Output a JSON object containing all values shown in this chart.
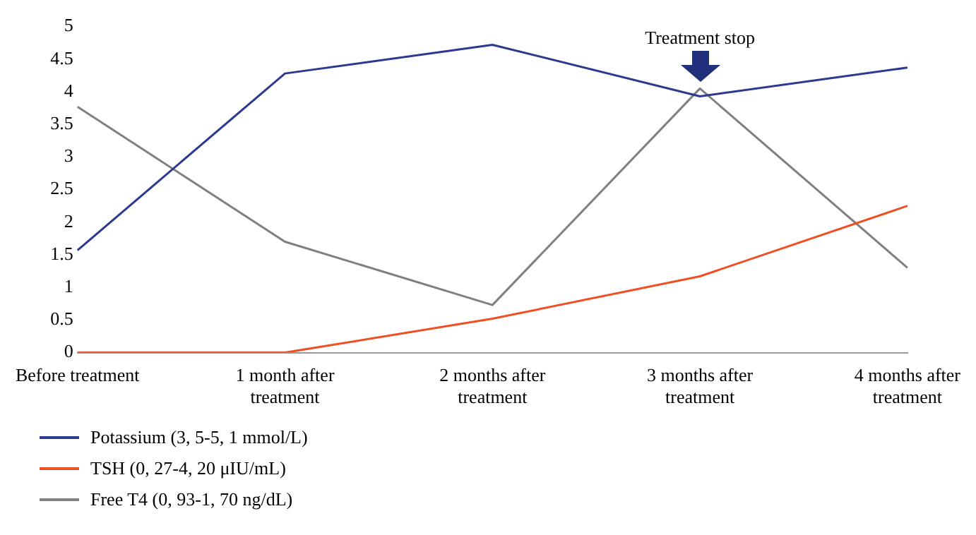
{
  "chart_data": {
    "type": "line",
    "categories": [
      "Before treatment",
      "1 month after treatment",
      "2 months after treatment",
      "3 months after treatment",
      "4 months after treatment"
    ],
    "series": [
      {
        "name": "Potassium (3, 5-5, 1 mmol/L)",
        "color": "#2b3990",
        "values": [
          1.57,
          4.28,
          4.72,
          3.93,
          4.37
        ]
      },
      {
        "name": "TSH (0, 27-4, 20 μIU/mL)",
        "color": "#f04e23",
        "values": [
          0,
          0,
          0.52,
          1.17,
          2.25
        ]
      },
      {
        "name": "Free T4 (0, 93-1, 70 ng/dL)",
        "color": "#808080",
        "values": [
          3.77,
          1.7,
          0.73,
          4.05,
          1.3
        ]
      }
    ],
    "ylim": [
      0,
      5
    ],
    "yticks": [
      0,
      0.5,
      1,
      1.5,
      2,
      2.5,
      3,
      3.5,
      4,
      4.5,
      5
    ],
    "grid": false,
    "legend": "bottom",
    "marker": "none",
    "line_style": "solid",
    "annotations": [
      {
        "text": "Treatment stop",
        "x": "3 months after treatment",
        "y": 3.93
      }
    ]
  }
}
